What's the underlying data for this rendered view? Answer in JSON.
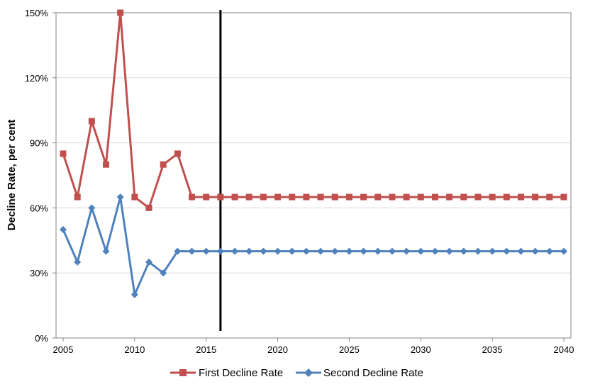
{
  "chart_data": {
    "type": "line",
    "title": "",
    "xlabel": "",
    "ylabel": "Decline Rate, per cent",
    "xlim": [
      2005,
      2040
    ],
    "ylim": [
      0,
      150
    ],
    "x_ticks": [
      2005,
      2010,
      2015,
      2020,
      2025,
      2030,
      2035,
      2040
    ],
    "y_ticks": [
      0,
      30,
      60,
      90,
      120,
      150
    ],
    "y_tick_labels": [
      "0%",
      "30%",
      "60%",
      "90%",
      "120%",
      "150%"
    ],
    "grid": "horizontal",
    "legend": "bottom",
    "vertical_marker_x": 2016,
    "x": [
      2005,
      2006,
      2007,
      2008,
      2009,
      2010,
      2011,
      2012,
      2013,
      2014,
      2015,
      2016,
      2017,
      2018,
      2019,
      2020,
      2021,
      2022,
      2023,
      2024,
      2025,
      2026,
      2027,
      2028,
      2029,
      2030,
      2031,
      2032,
      2033,
      2034,
      2035,
      2036,
      2037,
      2038,
      2039,
      2040
    ],
    "series": [
      {
        "name": "First Decline Rate",
        "color": "#C0504D",
        "marker": "square",
        "values": [
          85,
          65,
          100,
          80,
          150,
          65,
          60,
          80,
          85,
          65,
          65,
          65,
          65,
          65,
          65,
          65,
          65,
          65,
          65,
          65,
          65,
          65,
          65,
          65,
          65,
          65,
          65,
          65,
          65,
          65,
          65,
          65,
          65,
          65,
          65,
          65
        ]
      },
      {
        "name": "Second Decline Rate",
        "color": "#4F81BD",
        "marker": "diamond",
        "values": [
          50,
          35,
          60,
          40,
          65,
          20,
          35,
          30,
          40,
          40,
          40,
          40,
          40,
          40,
          40,
          40,
          40,
          40,
          40,
          40,
          40,
          40,
          40,
          40,
          40,
          40,
          40,
          40,
          40,
          40,
          40,
          40,
          40,
          40,
          40,
          40
        ]
      }
    ]
  }
}
